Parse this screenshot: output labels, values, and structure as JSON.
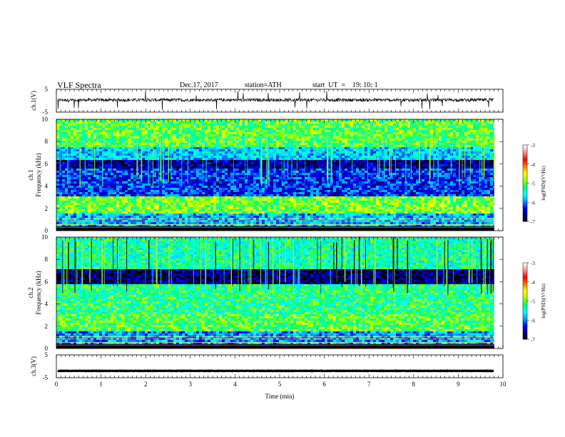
{
  "header": {
    "title": "VLF Spectra",
    "date": "Dec.17, 2017",
    "station": "station=ATH",
    "start": "start  UT  =    19: 10: 1"
  },
  "chart_data": [
    {
      "type": "line",
      "name_label": "ch.1(V)",
      "xlim": [
        0,
        10
      ],
      "ylim": [
        -5,
        5
      ],
      "yticks": [
        "5",
        "-5"
      ],
      "baseline": 0.3,
      "noise_amplitude": 1.4
    },
    {
      "type": "heatmap",
      "panel_label": "ch.1",
      "ylabel": "Frequency (kHz)",
      "ylim": [
        0,
        10
      ],
      "yticks": [
        "0",
        "2",
        "4",
        "6",
        "8",
        "10"
      ],
      "data_end_min": 9.8,
      "bands_khz": [
        {
          "from": 0.0,
          "to": 0.4,
          "log_psd": -7.0
        },
        {
          "from": 0.4,
          "to": 1.5,
          "log_psd": -5.8
        },
        {
          "from": 1.5,
          "to": 3.0,
          "log_psd": -4.9
        },
        {
          "from": 3.0,
          "to": 5.5,
          "log_psd": -6.2
        },
        {
          "from": 5.5,
          "to": 6.3,
          "log_psd": -6.6
        },
        {
          "from": 6.3,
          "to": 7.5,
          "log_psd": -5.7
        },
        {
          "from": 7.5,
          "to": 10.0,
          "log_psd": -5.0
        }
      ]
    },
    {
      "type": "heatmap",
      "panel_label": "ch.2",
      "ylabel": "Frequency (kHz)",
      "ylim": [
        0,
        10
      ],
      "yticks": [
        "0",
        "2",
        "4",
        "6",
        "8",
        "10"
      ],
      "data_end_min": 9.8,
      "bands_khz": [
        {
          "from": 0.0,
          "to": 0.4,
          "log_psd": -7.0
        },
        {
          "from": 0.4,
          "to": 1.5,
          "log_psd": -5.9
        },
        {
          "from": 1.5,
          "to": 3.0,
          "log_psd": -5.0
        },
        {
          "from": 3.0,
          "to": 5.8,
          "log_psd": -5.2
        },
        {
          "from": 5.8,
          "to": 7.2,
          "log_psd": -6.7
        },
        {
          "from": 7.2,
          "to": 10.0,
          "log_psd": -5.3
        }
      ]
    },
    {
      "type": "line",
      "name_label": "ch.3(V)",
      "xlim": [
        0,
        10
      ],
      "ylim": [
        -5,
        5
      ],
      "yticks": [
        "5",
        "-5"
      ],
      "baseline": -2.0,
      "noise_amplitude": 0.15
    }
  ],
  "colorbar": {
    "label": "log(PSD)(V²/Hz)",
    "range": [
      -7,
      -3
    ],
    "ticks": [
      "-3",
      "-4",
      "-5",
      "-6",
      "-7"
    ],
    "colors": [
      "#000000",
      "#000080",
      "#0000ff",
      "#00a0ff",
      "#00ffff",
      "#00ff80",
      "#a0ff00",
      "#ffff00",
      "#ff8000",
      "#ff0000",
      "#ff9090",
      "#ffffff"
    ]
  },
  "x_axis": {
    "label": "Time  (min)",
    "range": [
      0,
      10
    ],
    "ticks": [
      "0",
      "1",
      "2",
      "3",
      "4",
      "5",
      "6",
      "7",
      "8",
      "9",
      "10"
    ]
  }
}
